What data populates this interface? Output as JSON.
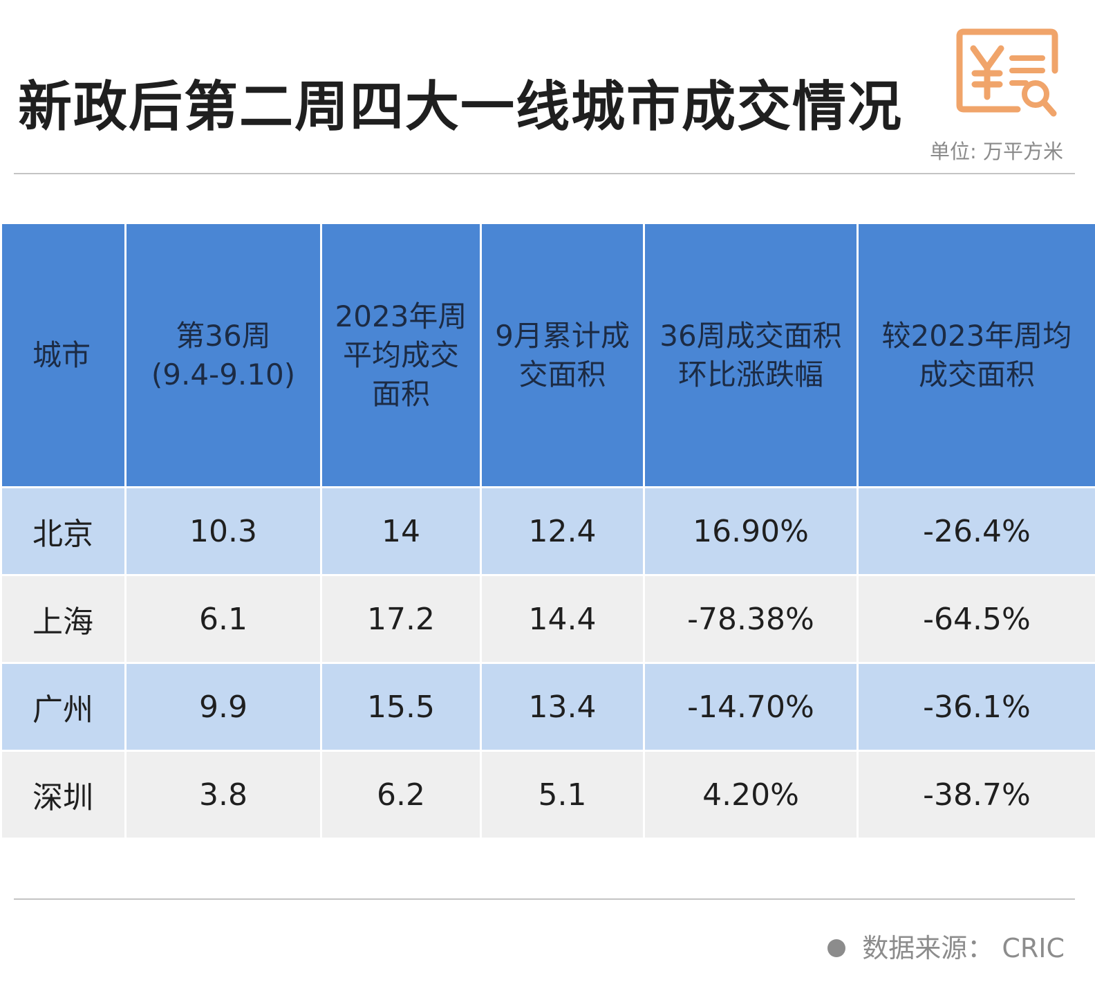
{
  "title": "新政后第二周四大一线城市成交情况",
  "unit": "单位: 万平方米",
  "logo_icon": "yuan-search-icon",
  "colors": {
    "header_bg": "#4a86d4",
    "row_blue": "#c3d8f2",
    "row_grey": "#efefef",
    "up": "#e8141c",
    "down": "#1fa44a",
    "logo": "#f0a46a"
  },
  "table": {
    "headers": [
      "城市",
      "第36周\n(9.4-9.10)",
      "2023年周\n平均成交\n面积",
      "9月累计成\n交面积",
      "36周成交面积\n环比涨跌幅",
      "较2023年周均\n成交面积"
    ],
    "rows": [
      {
        "city": "北京",
        "week36": "10.3",
        "avg2023": "14",
        "sept_total": "12.4",
        "wow": "16.90%",
        "vs2023": "-26.4%"
      },
      {
        "city": "上海",
        "week36": "6.1",
        "avg2023": "17.2",
        "sept_total": "14.4",
        "wow": "-78.38%",
        "vs2023": "-64.5%"
      },
      {
        "city": "广州",
        "week36": "9.9",
        "avg2023": "15.5",
        "sept_total": "13.4",
        "wow": "-14.70%",
        "vs2023": "-36.1%"
      },
      {
        "city": "深圳",
        "week36": "3.8",
        "avg2023": "6.2",
        "sept_total": "5.1",
        "wow": "4.20%",
        "vs2023": "-38.7%"
      }
    ]
  },
  "source": "数据来源： CRIC"
}
